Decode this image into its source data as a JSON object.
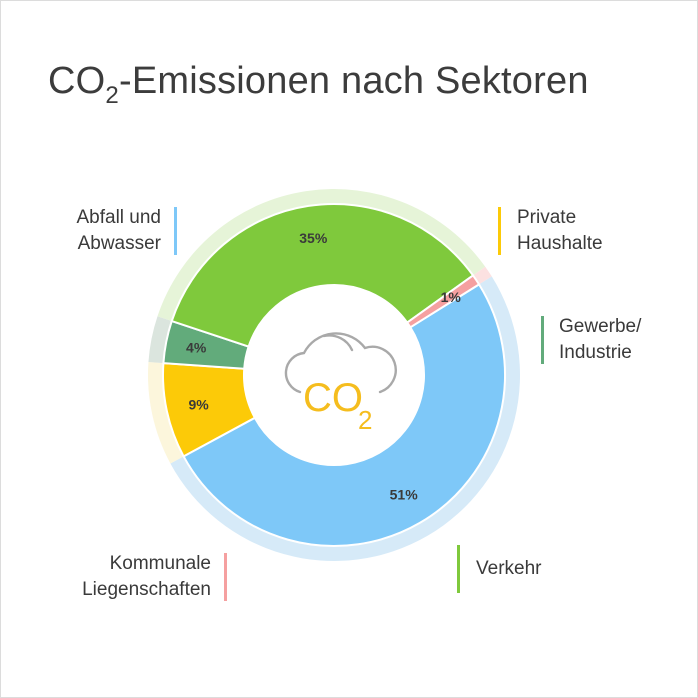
{
  "title": {
    "prefix": "CO",
    "subscript": "2",
    "suffix": "-Emissionen nach Sektoren"
  },
  "center_icon": {
    "name": "co2-cloud-icon",
    "text": "CO",
    "subscript": "2",
    "color": "#f5bd1e"
  },
  "chart_data": {
    "type": "pie",
    "style": "donut",
    "title": "CO2-Emissionen nach Sektoren",
    "unit": "%",
    "slices": [
      {
        "label": "Abfall und Abwasser",
        "label_lines": [
          "Abfall und",
          "Abwasser"
        ],
        "value": 51,
        "display": "51%",
        "color": "#7ec8f8",
        "ring_color": "#d6eaf8"
      },
      {
        "label": "Private Haushalte",
        "label_lines": [
          "Private",
          "Haushalte"
        ],
        "value": 9,
        "display": "9%",
        "color": "#fcca08",
        "ring_color": "#fcf6dc"
      },
      {
        "label": "Gewerbe/ Industrie",
        "label_lines": [
          "Gewerbe/",
          "Industrie"
        ],
        "value": 4,
        "display": "4%",
        "color": "#62ab7b",
        "ring_color": "#dbe5de"
      },
      {
        "label": "Verkehr",
        "label_lines": [
          "Verkehr"
        ],
        "value": 35,
        "display": "35%",
        "color": "#7fc93c",
        "ring_color": "#e6f4d8"
      },
      {
        "label": "Kommunale Liegenschaften",
        "label_lines": [
          "Kommunale",
          "Liegenschaften"
        ],
        "value": 1,
        "display": "1%",
        "color": "#f5a0a0",
        "ring_color": "#fce1e1"
      }
    ],
    "legend_placement": "around chart"
  }
}
